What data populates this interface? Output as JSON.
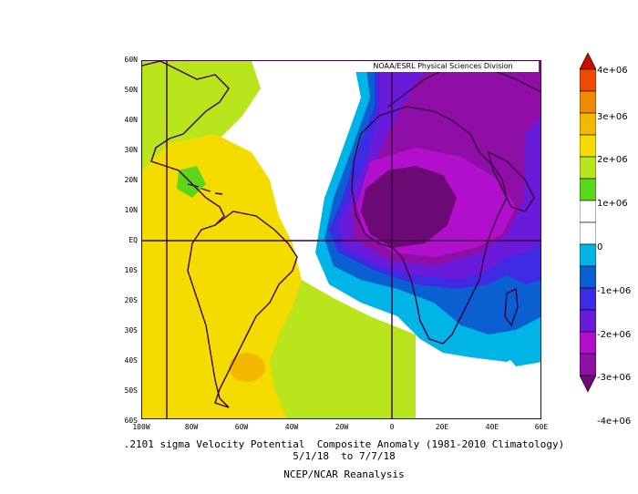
{
  "credit": "NOAA/ESRL Physical Sciences Division",
  "caption": {
    "line1": ".2101 sigma Velocity Potential  Composite Anomaly (1981-2010 Climatology)",
    "line2": "5/1/18  to 7/7/18",
    "line3": "NCEP/NCAR Reanalysis"
  },
  "lat_labels": [
    "60N",
    "50N",
    "40N",
    "30N",
    "20N",
    "10N",
    "EQ",
    "10S",
    "20S",
    "30S",
    "40S",
    "50S",
    "60S"
  ],
  "lon_labels": [
    "100W",
    "80W",
    "60W",
    "40W",
    "20W",
    "0",
    "20E",
    "40E",
    "60E"
  ],
  "colorbar": {
    "labels": [
      "4e+06",
      "3e+06",
      "2e+06",
      "1e+06",
      "0",
      "-1e+06",
      "-2e+06",
      "-3e+06",
      "-4e+06"
    ],
    "colors": [
      "#6b0a75",
      "#8f0fa6",
      "#b20fcc",
      "#6a1bd9",
      "#3d2be3",
      "#0a5fd1",
      "#00b4e6",
      "#ffffff",
      "#ffffff",
      "#5cd61b",
      "#b8e51c",
      "#f5dc00",
      "#f5b800",
      "#f08a00",
      "#f04a00",
      "#c80f00"
    ]
  },
  "map": {
    "extent_lon": [
      -100,
      60
    ],
    "extent_lat": [
      -60,
      60
    ],
    "levels": {
      "c_pos2": "#f5dc00",
      "c_pos1": "#b8e51c",
      "c_pos0": "#5cd61b",
      "c_neg1": "#00b4e6",
      "c_neg2": "#0a5fd1",
      "c_neg3": "#3d2be3",
      "c_neg4": "#6a1bd9",
      "c_neg5": "#8f0fa6",
      "c_neg6": "#b20fcc",
      "c_neg7": "#6b0a75",
      "c_hi": "#f5b800"
    },
    "coast_color": "#3a0040"
  }
}
